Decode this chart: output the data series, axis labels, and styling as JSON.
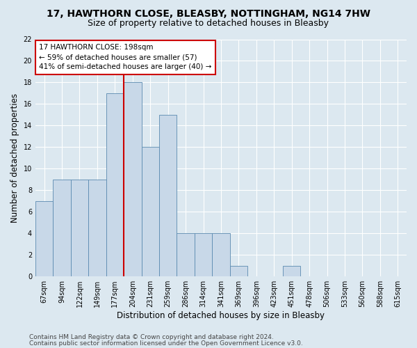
{
  "title1": "17, HAWTHORN CLOSE, BLEASBY, NOTTINGHAM, NG14 7HW",
  "title2": "Size of property relative to detached houses in Bleasby",
  "xlabel": "Distribution of detached houses by size in Bleasby",
  "ylabel": "Number of detached properties",
  "footer1": "Contains HM Land Registry data © Crown copyright and database right 2024.",
  "footer2": "Contains public sector information licensed under the Open Government Licence v3.0.",
  "categories": [
    "67sqm",
    "94sqm",
    "122sqm",
    "149sqm",
    "177sqm",
    "204sqm",
    "231sqm",
    "259sqm",
    "286sqm",
    "314sqm",
    "341sqm",
    "369sqm",
    "396sqm",
    "423sqm",
    "451sqm",
    "478sqm",
    "506sqm",
    "533sqm",
    "560sqm",
    "588sqm",
    "615sqm"
  ],
  "values": [
    7,
    9,
    9,
    9,
    17,
    18,
    12,
    15,
    4,
    4,
    4,
    1,
    0,
    0,
    1,
    0,
    0,
    0,
    0,
    0,
    0
  ],
  "bar_color": "#c8d8e8",
  "bar_edge_color": "#5a8ab0",
  "vline_color": "#cc0000",
  "vline_x": 4.5,
  "annotation_text": "17 HAWTHORN CLOSE: 198sqm\n← 59% of detached houses are smaller (57)\n41% of semi-detached houses are larger (40) →",
  "annotation_box_color": "#ffffff",
  "annotation_box_edge": "#cc0000",
  "ylim": [
    0,
    22
  ],
  "yticks": [
    0,
    2,
    4,
    6,
    8,
    10,
    12,
    14,
    16,
    18,
    20,
    22
  ],
  "background_color": "#dce8f0",
  "grid_color": "#ffffff",
  "title1_fontsize": 10,
  "title2_fontsize": 9,
  "tick_fontsize": 7,
  "ylabel_fontsize": 8.5,
  "xlabel_fontsize": 8.5,
  "footer_fontsize": 6.5
}
